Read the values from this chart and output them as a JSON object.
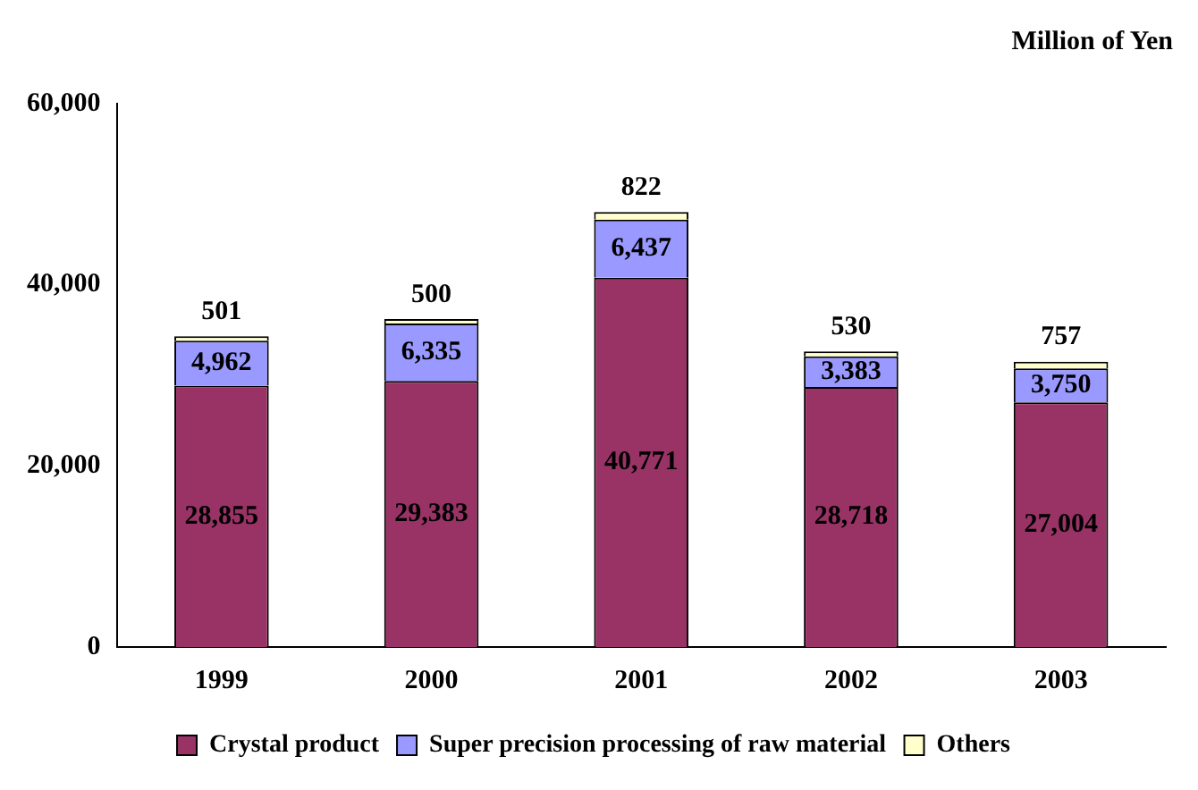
{
  "chart_data": {
    "type": "bar",
    "stacked": true,
    "ylabel": "Million of Yen",
    "categories": [
      "1999",
      "2000",
      "2001",
      "2002",
      "2003"
    ],
    "series": [
      {
        "name": "Crystal product",
        "color": "#993366",
        "values": [
          28855,
          29383,
          40771,
          28718,
          27004
        ],
        "value_labels": [
          "28,855",
          "29,383",
          "40,771",
          "28,718",
          "27,004"
        ]
      },
      {
        "name": "Super precision processing of raw material",
        "color": "#9999ff",
        "values": [
          4962,
          6335,
          6437,
          3383,
          3750
        ],
        "value_labels": [
          "4,962",
          "6,335",
          "6,437",
          "3,383",
          "3,750"
        ]
      },
      {
        "name": "Others",
        "color": "#ffffcc",
        "values": [
          501,
          500,
          822,
          530,
          757
        ],
        "value_labels": [
          "501",
          "500",
          "822",
          "530",
          "757"
        ]
      }
    ],
    "ylim": [
      0,
      60000
    ],
    "yticks": [
      {
        "value": 0,
        "label": "0"
      },
      {
        "value": 20000,
        "label": "20,000"
      },
      {
        "value": 40000,
        "label": "40,000"
      },
      {
        "value": 60000,
        "label": "60,000"
      }
    ],
    "grid": false,
    "legend": "bottom"
  }
}
